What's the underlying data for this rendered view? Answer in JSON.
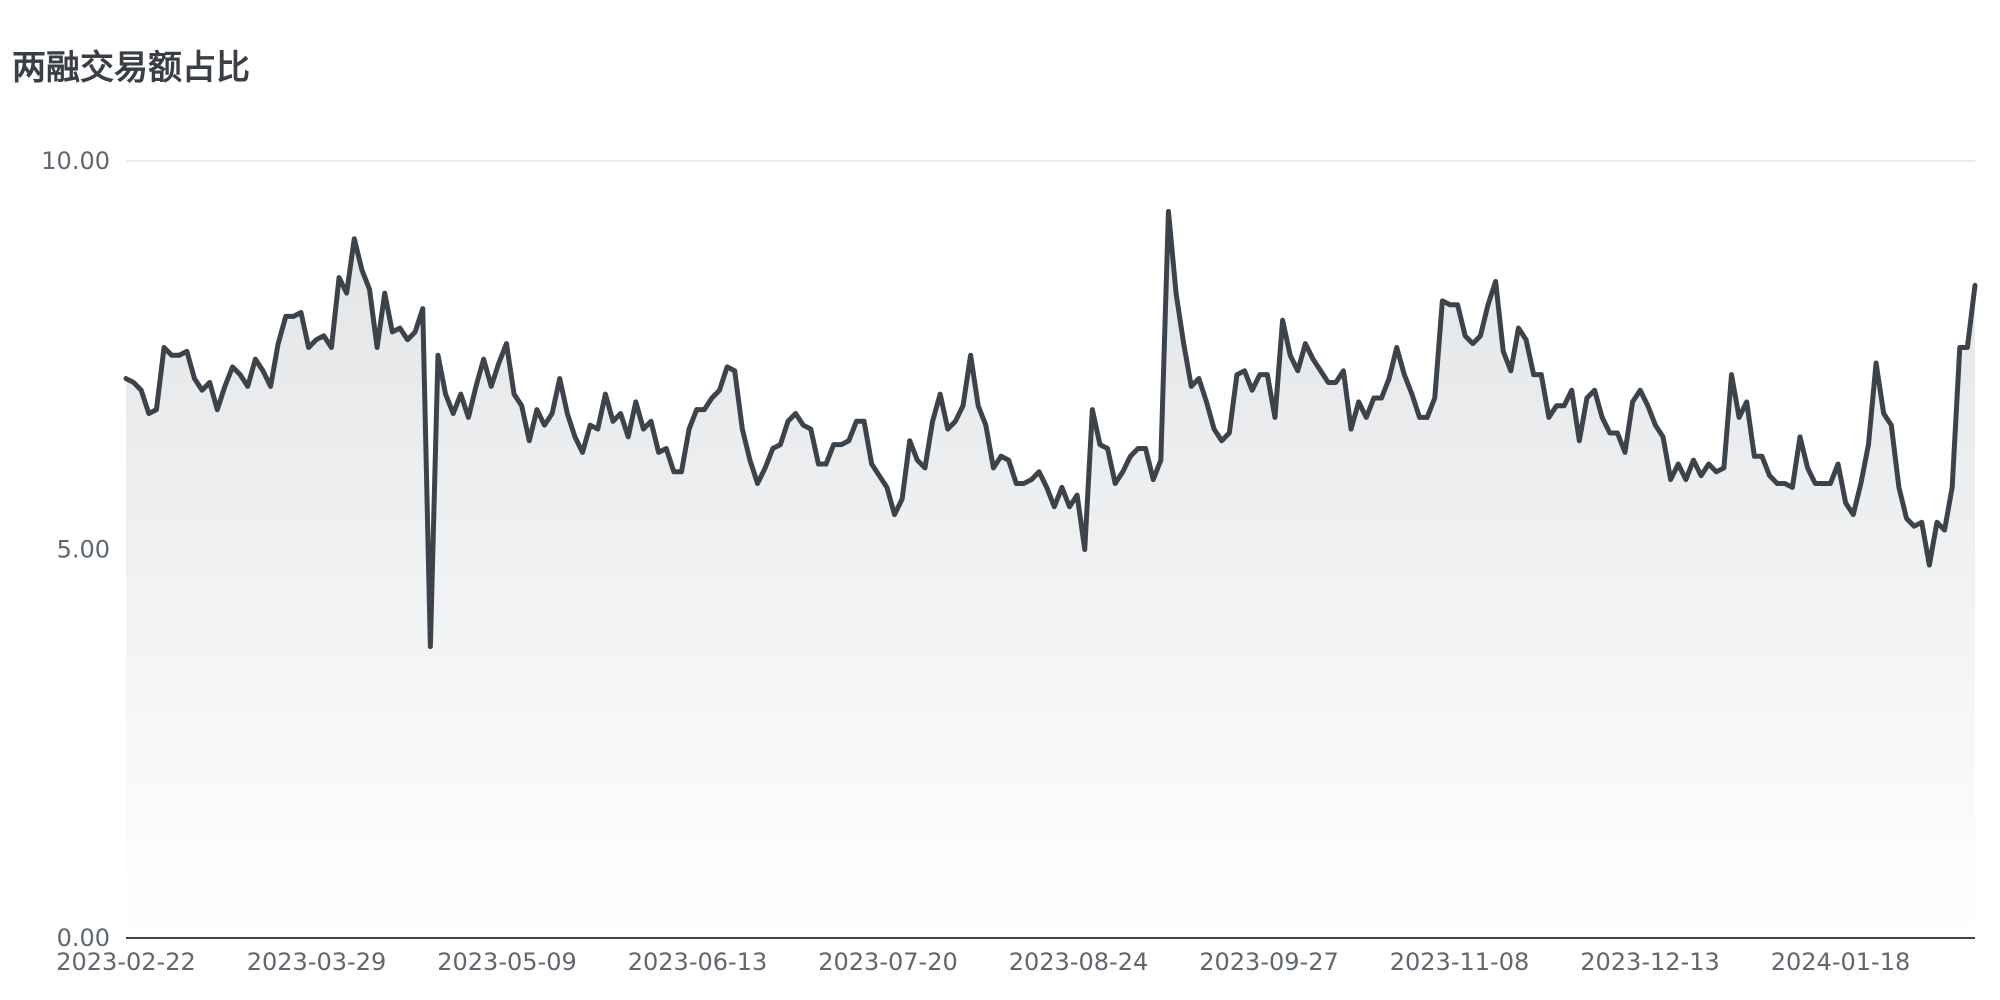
{
  "chart_data": {
    "type": "area",
    "title": "两融交易额占比",
    "xlabel": "",
    "ylabel": "",
    "ylim": [
      0,
      10
    ],
    "yticks": [
      "0.00",
      "5.00",
      "10.00"
    ],
    "xticks": [
      "2023-02-22",
      "2023-03-29",
      "2023-05-09",
      "2023-06-13",
      "2023-07-20",
      "2023-08-24",
      "2023-09-27",
      "2023-11-08",
      "2023-12-13",
      "2024-01-18"
    ],
    "grid": true,
    "colors": {
      "line": "#3c434b",
      "fill_top": "#e2e4e6",
      "fill_bottom": "#ffffff",
      "grid": "#d6d9dd",
      "axis": "#3c434b"
    },
    "values": [
      7.2,
      7.15,
      7.05,
      6.75,
      6.8,
      7.6,
      7.5,
      7.5,
      7.55,
      7.2,
      7.05,
      7.15,
      6.8,
      7.1,
      7.35,
      7.25,
      7.1,
      7.45,
      7.3,
      7.1,
      7.65,
      8.0,
      8.0,
      8.05,
      7.6,
      7.7,
      7.75,
      7.6,
      8.5,
      8.3,
      9.0,
      8.6,
      8.35,
      7.6,
      8.3,
      7.8,
      7.85,
      7.7,
      7.8,
      8.1,
      3.75,
      7.5,
      7.0,
      6.75,
      7.0,
      6.7,
      7.1,
      7.45,
      7.1,
      7.4,
      7.65,
      7.0,
      6.85,
      6.4,
      6.8,
      6.6,
      6.75,
      7.2,
      6.75,
      6.45,
      6.25,
      6.6,
      6.55,
      7.0,
      6.65,
      6.75,
      6.45,
      6.9,
      6.55,
      6.65,
      6.25,
      6.3,
      6.0,
      6.0,
      6.55,
      6.8,
      6.8,
      6.95,
      7.05,
      7.35,
      7.3,
      6.55,
      6.15,
      5.85,
      6.05,
      6.3,
      6.35,
      6.65,
      6.75,
      6.6,
      6.55,
      6.1,
      6.1,
      6.35,
      6.35,
      6.4,
      6.65,
      6.65,
      6.1,
      5.95,
      5.8,
      5.45,
      5.65,
      6.4,
      6.15,
      6.05,
      6.65,
      7.0,
      6.55,
      6.65,
      6.85,
      7.5,
      6.85,
      6.6,
      6.05,
      6.2,
      6.15,
      5.85,
      5.85,
      5.9,
      6.0,
      5.8,
      5.55,
      5.8,
      5.55,
      5.7,
      5.0,
      6.8,
      6.35,
      6.3,
      5.85,
      6.0,
      6.2,
      6.3,
      6.3,
      5.9,
      6.15,
      9.35,
      8.3,
      7.65,
      7.1,
      7.2,
      6.9,
      6.55,
      6.4,
      6.5,
      7.25,
      7.3,
      7.05,
      7.25,
      7.25,
      6.7,
      7.95,
      7.5,
      7.3,
      7.65,
      7.45,
      7.3,
      7.15,
      7.15,
      7.3,
      6.55,
      6.9,
      6.7,
      6.95,
      6.95,
      7.2,
      7.6,
      7.25,
      7.0,
      6.7,
      6.7,
      6.95,
      8.2,
      8.15,
      8.15,
      7.75,
      7.65,
      7.75,
      8.15,
      8.45,
      7.55,
      7.3,
      7.85,
      7.7,
      7.25,
      7.25,
      6.7,
      6.85,
      6.85,
      7.05,
      6.4,
      6.95,
      7.05,
      6.7,
      6.5,
      6.5,
      6.25,
      6.9,
      7.05,
      6.85,
      6.6,
      6.45,
      5.9,
      6.1,
      5.9,
      6.15,
      5.95,
      6.1,
      6.0,
      6.05,
      7.25,
      6.7,
      6.9,
      6.2,
      6.2,
      5.95,
      5.85,
      5.85,
      5.8,
      6.45,
      6.05,
      5.85,
      5.85,
      5.85,
      6.1,
      5.6,
      5.45,
      5.85,
      6.35,
      7.4,
      6.75,
      6.6,
      5.8,
      5.4,
      5.3,
      5.35,
      4.8,
      5.35,
      5.25,
      5.8,
      7.6,
      7.6,
      8.4
    ]
  }
}
